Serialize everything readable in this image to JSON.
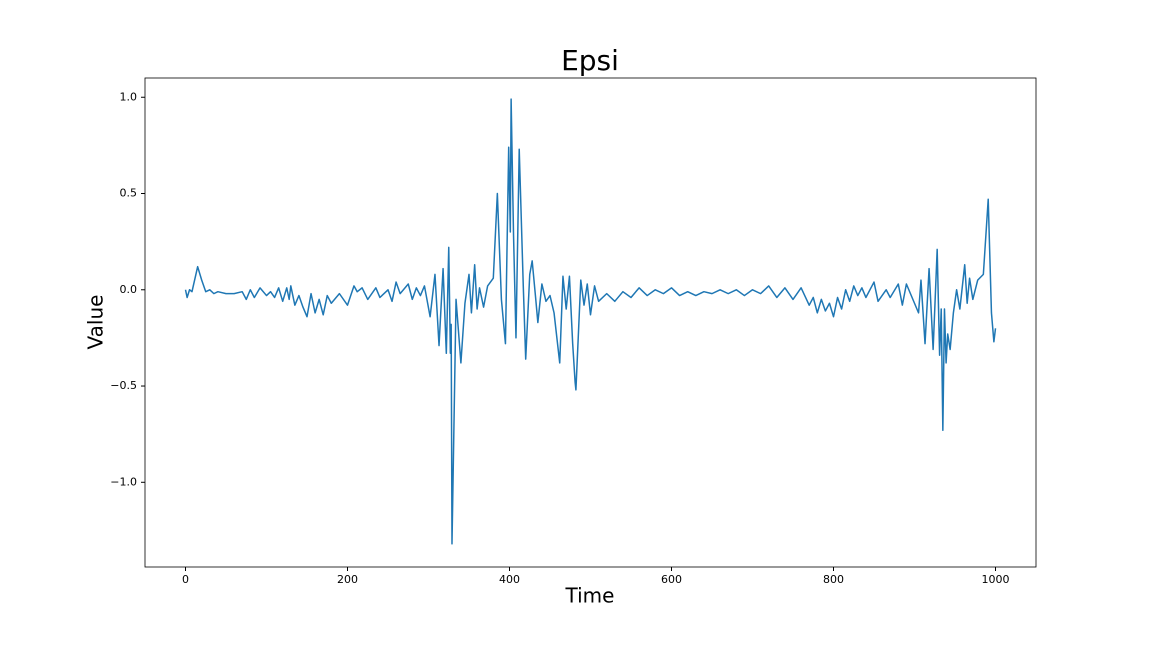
{
  "chart_data": {
    "type": "line",
    "title": "Epsi",
    "x_label": "Time",
    "y_label": "Value",
    "color": "#1f77b4",
    "x": [
      0,
      2,
      5,
      8,
      15,
      20,
      25,
      30,
      35,
      40,
      50,
      60,
      70,
      75,
      80,
      85,
      92,
      100,
      105,
      110,
      115,
      120,
      125,
      128,
      130,
      135,
      140,
      145,
      150,
      155,
      160,
      165,
      170,
      175,
      180,
      190,
      200,
      208,
      212,
      218,
      225,
      235,
      240,
      250,
      255,
      260,
      265,
      275,
      280,
      285,
      290,
      295,
      302,
      308,
      313,
      318,
      322,
      325,
      327,
      328,
      329,
      334,
      336,
      340,
      345,
      350,
      353,
      357,
      360,
      363,
      368,
      373,
      380,
      385,
      390,
      395,
      399,
      401,
      402,
      405,
      408,
      412,
      417,
      420,
      425,
      428,
      432,
      435,
      440,
      445,
      450,
      455,
      462,
      466,
      470,
      474,
      478,
      481,
      482,
      488,
      492,
      496,
      500,
      505,
      510,
      520,
      530,
      540,
      550,
      560,
      570,
      580,
      590,
      600,
      610,
      620,
      630,
      640,
      650,
      660,
      670,
      680,
      690,
      700,
      710,
      720,
      730,
      740,
      750,
      760,
      770,
      775,
      780,
      785,
      790,
      795,
      800,
      805,
      810,
      815,
      820,
      825,
      830,
      835,
      840,
      850,
      855,
      865,
      870,
      880,
      885,
      890,
      895,
      905,
      908,
      913,
      918,
      923,
      928,
      931,
      933,
      935,
      937,
      939,
      941,
      944,
      948,
      952,
      956,
      962,
      965,
      968,
      972,
      978,
      985,
      991,
      995,
      998,
      1000
    ],
    "values": [
      0,
      -0.04,
      0,
      -0.01,
      0.12,
      0.05,
      -0.01,
      0,
      -0.02,
      -0.01,
      -0.02,
      -0.02,
      -0.01,
      -0.05,
      0,
      -0.04,
      0.01,
      -0.03,
      -0.01,
      -0.04,
      0.01,
      -0.06,
      0.01,
      -0.05,
      0.02,
      -0.08,
      -0.03,
      -0.09,
      -0.14,
      -0.02,
      -0.12,
      -0.05,
      -0.13,
      -0.03,
      -0.07,
      -0.02,
      -0.08,
      0.02,
      -0.01,
      0.01,
      -0.05,
      0.01,
      -0.04,
      0,
      -0.06,
      0.04,
      -0.02,
      0.03,
      -0.05,
      0.01,
      -0.03,
      0.02,
      -0.14,
      0.08,
      -0.29,
      0.11,
      -0.33,
      0.22,
      -0.33,
      -0.18,
      -1.32,
      -0.05,
      -0.16,
      -0.38,
      -0.07,
      0.08,
      -0.12,
      0.13,
      -0.1,
      0.01,
      -0.09,
      0.02,
      0.06,
      0.5,
      -0.05,
      -0.28,
      0.74,
      0.3,
      0.99,
      0.28,
      -0.25,
      0.73,
      0.02,
      -0.36,
      0.08,
      0.15,
      -0.03,
      -0.17,
      0.03,
      -0.06,
      -0.03,
      -0.12,
      -0.38,
      0.07,
      -0.1,
      0.07,
      -0.28,
      -0.48,
      -0.52,
      0.05,
      -0.08,
      0.03,
      -0.13,
      0.02,
      -0.06,
      -0.02,
      -0.06,
      -0.01,
      -0.04,
      0.01,
      -0.03,
      0,
      -0.02,
      0.01,
      -0.03,
      -0.01,
      -0.03,
      -0.01,
      -0.02,
      0,
      -0.02,
      0,
      -0.03,
      0,
      -0.02,
      0.02,
      -0.04,
      0.01,
      -0.05,
      0.01,
      -0.08,
      -0.04,
      -0.12,
      -0.05,
      -0.11,
      -0.07,
      -0.14,
      -0.04,
      -0.1,
      0,
      -0.06,
      0.02,
      -0.03,
      0.01,
      -0.04,
      0.04,
      -0.06,
      0,
      -0.04,
      0.03,
      -0.08,
      0.03,
      -0.02,
      -0.12,
      0.05,
      -0.28,
      0.11,
      -0.31,
      0.21,
      -0.34,
      -0.1,
      -0.73,
      -0.1,
      -0.38,
      -0.23,
      -0.31,
      -0.12,
      0,
      -0.1,
      0.13,
      -0.07,
      0.06,
      -0.05,
      0.05,
      0.08,
      0.47,
      -0.12,
      -0.27,
      -0.2
    ],
    "xlim": [
      -50,
      1050
    ],
    "ylim": [
      -1.44,
      1.1
    ],
    "xticks": [
      0,
      200,
      400,
      600,
      800,
      1000
    ],
    "yticks": [
      {
        "value": -1,
        "label": "−1.0"
      },
      {
        "value": -0.5,
        "label": "−0.5"
      },
      {
        "value": 0,
        "label": "0.0"
      },
      {
        "value": 0.5,
        "label": "0.5"
      },
      {
        "value": 1,
        "label": "1.0"
      }
    ]
  }
}
